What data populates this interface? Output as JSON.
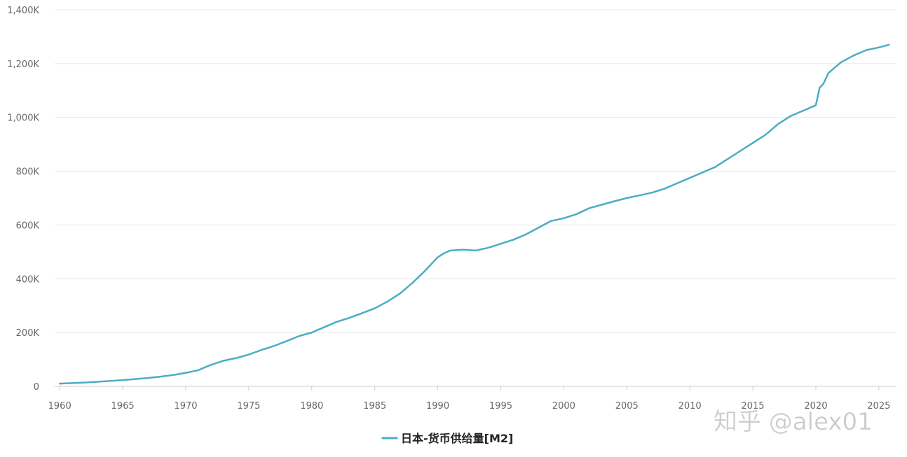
{
  "colors": {
    "series": "#4bacc6",
    "grid": "#e6e6e6",
    "axis": "#cccccc",
    "tick_text": "#666666"
  },
  "watermark": "知乎 @alex01",
  "chart_data": {
    "type": "line",
    "title": "",
    "xlabel": "",
    "ylabel": "",
    "xlim": [
      1959.6,
      2026.4
    ],
    "ylim": [
      0,
      1400000
    ],
    "grid": "horizontal",
    "legend": {
      "position": "bottom-center"
    },
    "x_ticks": [
      {
        "value": 1960,
        "label": "1960"
      },
      {
        "value": 1965,
        "label": "1965"
      },
      {
        "value": 1970,
        "label": "1970"
      },
      {
        "value": 1975,
        "label": "1975"
      },
      {
        "value": 1980,
        "label": "1980"
      },
      {
        "value": 1985,
        "label": "1985"
      },
      {
        "value": 1990,
        "label": "1990"
      },
      {
        "value": 1995,
        "label": "1995"
      },
      {
        "value": 2000,
        "label": "2000"
      },
      {
        "value": 2005,
        "label": "2005"
      },
      {
        "value": 2010,
        "label": "2010"
      },
      {
        "value": 2015,
        "label": "2015"
      },
      {
        "value": 2020,
        "label": "2020"
      },
      {
        "value": 2025,
        "label": "2025"
      }
    ],
    "y_ticks": [
      {
        "value": 0,
        "label": "0"
      },
      {
        "value": 200000,
        "label": "200K"
      },
      {
        "value": 400000,
        "label": "400K"
      },
      {
        "value": 600000,
        "label": "600K"
      },
      {
        "value": 800000,
        "label": "800K"
      },
      {
        "value": 1000000,
        "label": "1,000K"
      },
      {
        "value": 1200000,
        "label": "1,200K"
      },
      {
        "value": 1400000,
        "label": "1,400K"
      }
    ],
    "series": [
      {
        "name": "日本-货币供给量[M2]",
        "color": "#4bacc6",
        "x": [
          1960,
          1961,
          1962,
          1963,
          1964,
          1965,
          1966,
          1967,
          1968,
          1969,
          1970,
          1971,
          1972,
          1973,
          1974,
          1975,
          1976,
          1977,
          1978,
          1979,
          1980,
          1981,
          1982,
          1983,
          1984,
          1985,
          1986,
          1987,
          1988,
          1989,
          1990,
          1990.5,
          1991,
          1992,
          1993,
          1994,
          1995,
          1996,
          1997,
          1998,
          1999,
          2000,
          2001,
          2002,
          2003,
          2004,
          2005,
          2006,
          2007,
          2008,
          2009,
          2010,
          2011,
          2012,
          2013,
          2014,
          2015,
          2016,
          2017,
          2018,
          2019,
          2020,
          2020.3,
          2020.6,
          2021,
          2022,
          2023,
          2024,
          2025,
          2025.8
        ],
        "y": [
          10000,
          12000,
          14000,
          17000,
          20000,
          23000,
          27000,
          31000,
          36000,
          42000,
          50000,
          60000,
          80000,
          95000,
          105000,
          118000,
          135000,
          150000,
          168000,
          187000,
          200000,
          220000,
          240000,
          255000,
          272000,
          290000,
          315000,
          345000,
          385000,
          430000,
          480000,
          495000,
          505000,
          508000,
          505000,
          515000,
          530000,
          545000,
          565000,
          590000,
          615000,
          625000,
          640000,
          662000,
          675000,
          688000,
          700000,
          710000,
          720000,
          735000,
          755000,
          775000,
          795000,
          815000,
          845000,
          875000,
          905000,
          935000,
          975000,
          1005000,
          1025000,
          1045000,
          1110000,
          1125000,
          1165000,
          1205000,
          1230000,
          1250000,
          1260000,
          1270000
        ]
      }
    ]
  }
}
